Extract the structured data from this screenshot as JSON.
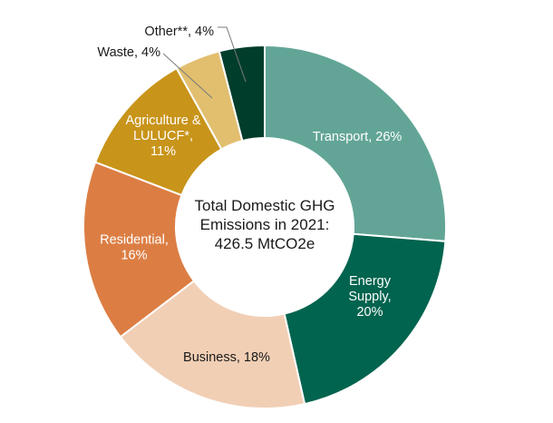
{
  "chart_data": {
    "type": "pie",
    "variant": "donut",
    "center_text": [
      "Total Domestic GHG",
      "Emissions in 2021:",
      "426.5 MtCO2e"
    ],
    "slices": [
      {
        "label": [
          "Transport, 26%"
        ],
        "value": 26,
        "color": "#62a596",
        "text_color": "#ffffff"
      },
      {
        "label": [
          "Energy",
          "Supply,",
          "20%"
        ],
        "value": 20,
        "color": "#00644e",
        "text_color": "#ffffff"
      },
      {
        "label": [
          "Business, 18%"
        ],
        "value": 18,
        "color": "#f1cfb5",
        "text_color": "#1a1a1a"
      },
      {
        "label": [
          "Residential,",
          "16%"
        ],
        "value": 16,
        "color": "#dc7e44",
        "text_color": "#ffffff"
      },
      {
        "label": [
          "Agriculture &",
          "LULUCF*,",
          "11%"
        ],
        "value": 11,
        "color": "#c8941a",
        "text_color": "#ffffff"
      },
      {
        "label": [
          "Waste, 4%"
        ],
        "value": 4,
        "color": "#e1bf6f",
        "text_color": "#1a1a1a",
        "external": true
      },
      {
        "label": [
          "Other**, 4%"
        ],
        "value": 4,
        "color": "#003d2b",
        "text_color": "#1a1a1a",
        "external": true
      }
    ]
  }
}
